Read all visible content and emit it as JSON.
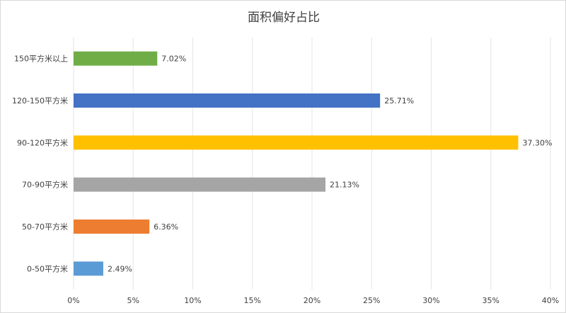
{
  "chart_data": {
    "type": "bar",
    "orientation": "horizontal",
    "title": "面积偏好占比",
    "categories": [
      "0-50平方米",
      "50-70平方米",
      "70-90平方米",
      "90-120平方米",
      "120-150平方米",
      "150平方米以上"
    ],
    "values": [
      2.49,
      6.36,
      21.13,
      37.3,
      25.71,
      7.02
    ],
    "data_labels": [
      "2.49%",
      "6.36%",
      "21.13%",
      "37.30%",
      "25.71%",
      "7.02%"
    ],
    "colors": [
      "#5b9bd5",
      "#ed7d31",
      "#a5a5a5",
      "#ffc000",
      "#4472c4",
      "#70ad47"
    ],
    "xlim": [
      0,
      40
    ],
    "xticks": [
      "0%",
      "5%",
      "10%",
      "15%",
      "20%",
      "25%",
      "30%",
      "35%",
      "40%"
    ],
    "grid": true,
    "legend": "none"
  }
}
